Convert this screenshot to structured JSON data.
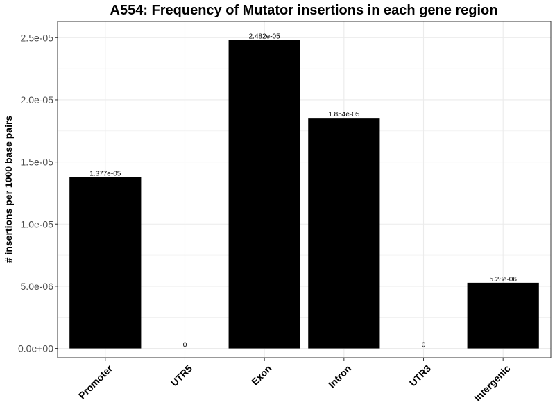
{
  "chart_data": {
    "type": "bar",
    "title": "A554: Frequency of Mutator insertions in each gene region",
    "xlabel": "",
    "ylabel": "# insertions per 1000 base pairs",
    "categories": [
      "Promoter",
      "UTR5",
      "Exon",
      "Intron",
      "UTR3",
      "Intergenic"
    ],
    "values": [
      1.377e-05,
      0,
      2.482e-05,
      1.854e-05,
      0,
      5.28e-06
    ],
    "data_labels": [
      "1.377e-05",
      "0",
      "2.482e-05",
      "1.854e-05",
      "0",
      "5.28e-06"
    ],
    "yticks": [
      0,
      5e-06,
      1e-05,
      1.5e-05,
      2e-05,
      2.5e-05
    ],
    "ytick_labels": [
      "0.0e+00",
      "5.0e-06",
      "1.0e-05",
      "1.5e-05",
      "2.0e-05",
      "2.5e-05"
    ],
    "ylim": [
      -7.5e-07,
      2.63e-05
    ],
    "grid": true,
    "bar_color": "#000000",
    "grid_color": "#ebebeb",
    "panel_border_color": "#333333",
    "legend": "none"
  }
}
